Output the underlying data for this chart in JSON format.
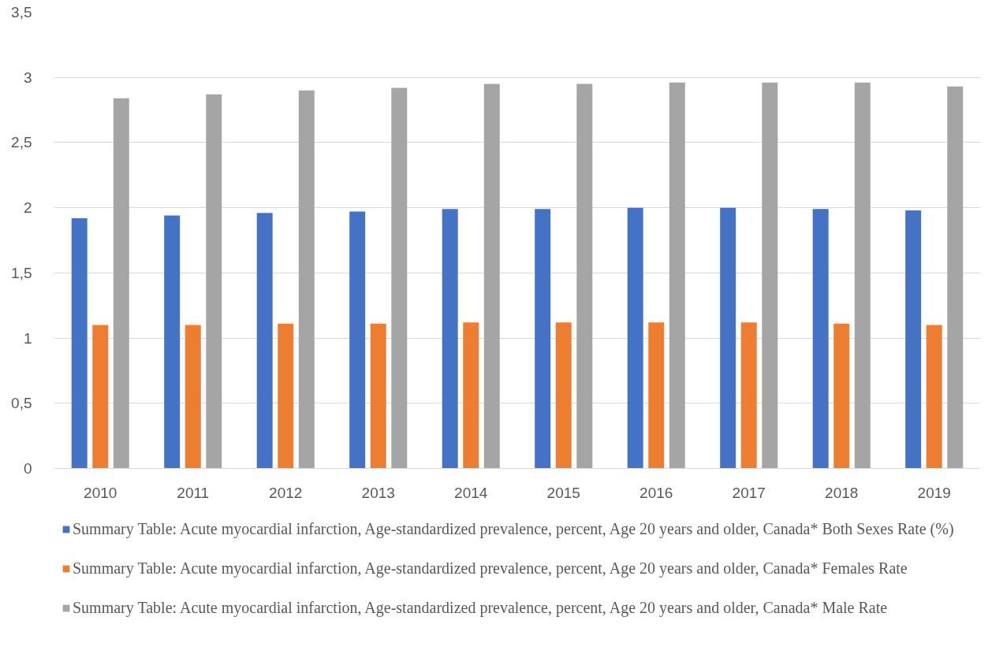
{
  "chart_data": {
    "type": "bar",
    "categories": [
      "2010",
      "2011",
      "2012",
      "2013",
      "2014",
      "2015",
      "2016",
      "2017",
      "2018",
      "2019"
    ],
    "series": [
      {
        "name": "Summary Table: Acute myocardial infarction, Age-standardized prevalence, percent, Age 20 years and older, Canada* Both Sexes Rate (%)",
        "color": "#4472c4",
        "values": [
          1.92,
          1.94,
          1.96,
          1.97,
          1.99,
          1.99,
          2.0,
          2.0,
          1.99,
          1.98
        ]
      },
      {
        "name": "Summary Table: Acute myocardial infarction, Age-standardized prevalence, percent, Age 20 years and older, Canada* Females Rate",
        "color": "#ed7d31",
        "values": [
          1.1,
          1.1,
          1.11,
          1.11,
          1.12,
          1.12,
          1.12,
          1.12,
          1.11,
          1.1
        ]
      },
      {
        "name": "Summary Table: Acute myocardial infarction, Age-standardized prevalence, percent, Age 20 years and older, Canada* Male Rate",
        "color": "#a5a5a5",
        "values": [
          2.84,
          2.87,
          2.9,
          2.92,
          2.95,
          2.95,
          2.96,
          2.96,
          2.96,
          2.93
        ]
      }
    ],
    "ylim": [
      0,
      3.5
    ],
    "yticks": [
      0,
      {
        "value": 0.5,
        "label": "0,5"
      },
      1,
      {
        "value": 1.5,
        "label": "1,5"
      },
      2,
      {
        "value": 2.5,
        "label": "2,5"
      },
      3,
      {
        "value": 3.5,
        "label": "3,5"
      }
    ],
    "grid": "y",
    "legend": "bottom"
  }
}
